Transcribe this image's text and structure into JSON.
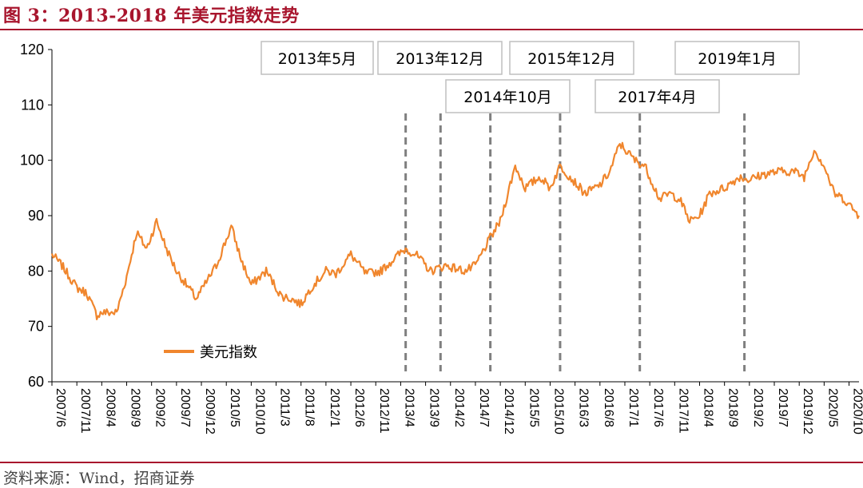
{
  "figure_title": "图 3：2013-2018 年美元指数走势",
  "source": "资料来源：Wind，招商证券",
  "colors": {
    "series": "#f0862d",
    "accent": "#a8152d",
    "event_line": "#7f7f7f"
  },
  "chart_data": {
    "type": "line",
    "title": "",
    "xlabel": "",
    "ylabel": "",
    "ylim": [
      60,
      120
    ],
    "yticks": [
      60,
      70,
      80,
      90,
      100,
      110,
      120
    ],
    "grid": false,
    "legend_position": "lower-left",
    "x_ticks": [
      "2007/6",
      "2007/11",
      "2008/4",
      "2008/9",
      "2009/2",
      "2009/7",
      "2009/12",
      "2010/5",
      "2010/10",
      "2011/3",
      "2011/8",
      "2012/1",
      "2012/6",
      "2012/11",
      "2013/4",
      "2013/9",
      "2014/2",
      "2014/7",
      "2014/12",
      "2015/5",
      "2015/10",
      "2016/3",
      "2016/8",
      "2017/1",
      "2017/6",
      "2017/11",
      "2018/4",
      "2018/9",
      "2019/2",
      "2019/7",
      "2019/12",
      "2020/5",
      "2020/10"
    ],
    "series": [
      {
        "name": "美元指数",
        "points": [
          [
            "2007/6",
            83
          ],
          [
            "2007/8",
            81
          ],
          [
            "2007/11",
            77
          ],
          [
            "2008/1",
            76
          ],
          [
            "2008/3",
            72
          ],
          [
            "2008/4",
            72.5
          ],
          [
            "2008/7",
            72.5
          ],
          [
            "2008/9",
            79
          ],
          [
            "2008/11",
            87
          ],
          [
            "2009/1",
            84
          ],
          [
            "2009/3",
            89
          ],
          [
            "2009/5",
            84
          ],
          [
            "2009/7",
            80
          ],
          [
            "2009/9",
            77.5
          ],
          [
            "2009/11",
            75
          ],
          [
            "2010/1",
            78
          ],
          [
            "2010/3",
            81
          ],
          [
            "2010/6",
            88
          ],
          [
            "2010/8",
            82
          ],
          [
            "2010/10",
            77.5
          ],
          [
            "2011/1",
            80
          ],
          [
            "2011/4",
            75.5
          ],
          [
            "2011/6",
            75
          ],
          [
            "2011/8",
            74
          ],
          [
            "2011/10",
            77
          ],
          [
            "2012/1",
            80
          ],
          [
            "2012/3",
            79.5
          ],
          [
            "2012/6",
            83
          ],
          [
            "2012/9",
            79.5
          ],
          [
            "2012/12",
            80
          ],
          [
            "2013/3",
            82.5
          ],
          [
            "2013/5",
            84
          ],
          [
            "2013/7",
            83
          ],
          [
            "2013/10",
            80
          ],
          [
            "2014/1",
            81
          ],
          [
            "2014/5",
            80
          ],
          [
            "2014/7",
            81
          ],
          [
            "2014/10",
            86
          ],
          [
            "2014/12",
            89
          ],
          [
            "2015/3",
            99
          ],
          [
            "2015/5",
            95
          ],
          [
            "2015/8",
            97
          ],
          [
            "2015/10",
            95
          ],
          [
            "2015/12",
            99
          ],
          [
            "2016/3",
            96
          ],
          [
            "2016/5",
            94
          ],
          [
            "2016/8",
            95.5
          ],
          [
            "2016/10",
            98
          ],
          [
            "2016/12",
            103
          ],
          [
            "2017/3",
            100
          ],
          [
            "2017/5",
            99
          ],
          [
            "2017/8",
            93
          ],
          [
            "2017/10",
            94
          ],
          [
            "2017/12",
            93
          ],
          [
            "2018/2",
            89
          ],
          [
            "2018/4",
            90
          ],
          [
            "2018/6",
            94
          ],
          [
            "2018/9",
            95
          ],
          [
            "2018/12",
            97
          ],
          [
            "2019/2",
            96.5
          ],
          [
            "2019/5",
            97.5
          ],
          [
            "2019/8",
            98
          ],
          [
            "2019/11",
            98
          ],
          [
            "2020/1",
            97
          ],
          [
            "2020/3",
            102
          ],
          [
            "2020/5",
            99
          ],
          [
            "2020/7",
            94
          ],
          [
            "2020/9",
            93
          ],
          [
            "2020/12",
            90
          ]
        ]
      }
    ],
    "annotations": [
      {
        "label": "2013年5月",
        "x": "2013/5"
      },
      {
        "label": "2013年12月",
        "x": "2013/12"
      },
      {
        "label": "2014年10月",
        "x": "2014/10"
      },
      {
        "label": "2015年12月",
        "x": "2015/12"
      },
      {
        "label": "2017年4月",
        "x": "2017/4"
      },
      {
        "label": "2019年1月",
        "x": "2019/1"
      }
    ]
  }
}
